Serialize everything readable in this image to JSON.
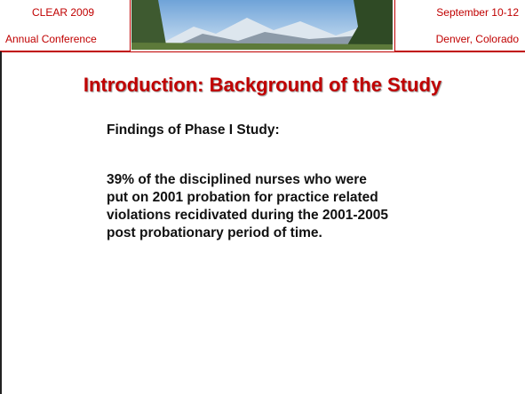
{
  "header": {
    "left": [
      "CLEAR 2009",
      "Annual Conference"
    ],
    "right": [
      "September 10-12",
      "Denver, Colorado"
    ]
  },
  "title": "Introduction: Background of the Study",
  "body": {
    "heading": "Findings of Phase I Study:",
    "paragraph_lines": [
      "39% of the disciplined nurses who were",
      "put on 2001 probation for practice related",
      "violations recidivated during the 2001-2005",
      "post probationary period of time."
    ]
  }
}
